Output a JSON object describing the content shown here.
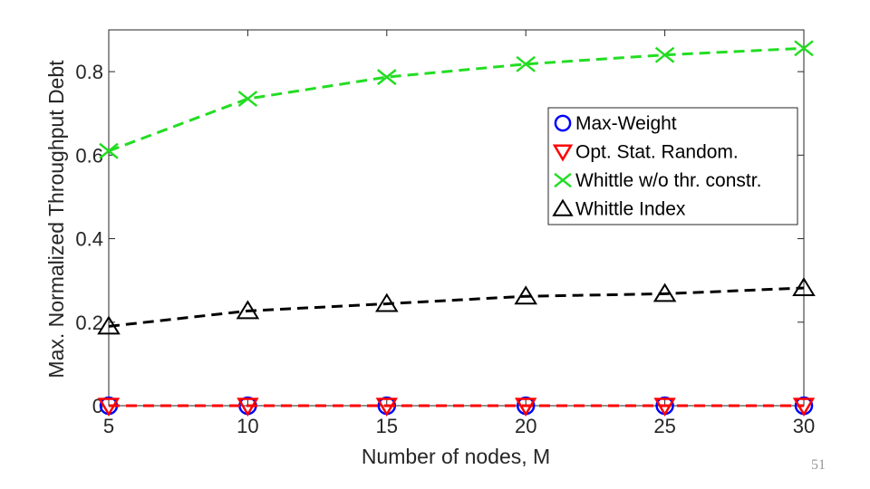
{
  "chart_data": {
    "type": "line",
    "title": "",
    "xlabel": "Number of nodes, M",
    "ylabel": "Max. Normalized Throughput Debt",
    "x": [
      5,
      10,
      15,
      20,
      25,
      30
    ],
    "xticks": [
      5,
      10,
      15,
      20,
      25,
      30
    ],
    "yticks": [
      0,
      0.2,
      0.4,
      0.6,
      0.8
    ],
    "ytick_labels": [
      "0",
      "0.2",
      "0.4",
      "0.6",
      "0.8"
    ],
    "xlim": [
      5,
      30
    ],
    "ylim": [
      0,
      0.9
    ],
    "grid": false,
    "legend_position": "upper-right",
    "series": [
      {
        "name": "Max-Weight",
        "values": [
          0,
          0,
          0,
          0,
          0,
          0
        ],
        "color": "#0000ff",
        "marker": "circle",
        "line": "none"
      },
      {
        "name": "Opt. Stat. Random.",
        "values": [
          0,
          0,
          0,
          0,
          0,
          0
        ],
        "color": "#ff0000",
        "marker": "triangle-down",
        "line": "dashed"
      },
      {
        "name": "Whittle w/o thr. constr.",
        "values": [
          0.61,
          0.735,
          0.787,
          0.818,
          0.84,
          0.856
        ],
        "color": "#22dd22",
        "marker": "x",
        "line": "dashed"
      },
      {
        "name": "Whittle Index",
        "values": [
          0.19,
          0.227,
          0.244,
          0.262,
          0.268,
          0.282
        ],
        "color": "#000000",
        "marker": "triangle-up",
        "line": "dashed"
      }
    ]
  },
  "page_number": "51"
}
